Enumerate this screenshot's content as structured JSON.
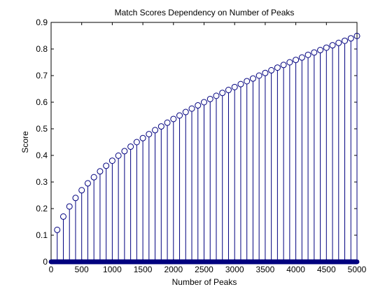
{
  "chart_data": {
    "type": "stem",
    "title": "Match Scores Dependency on Number of Peaks",
    "xlabel": "Number of Peaks",
    "ylabel": "Score",
    "xlim": [
      0,
      5000
    ],
    "ylim": [
      0,
      0.9
    ],
    "xticks": [
      0,
      500,
      1000,
      1500,
      2000,
      2500,
      3000,
      3500,
      4000,
      4500,
      5000
    ],
    "yticks": [
      0,
      0.1,
      0.2,
      0.3,
      0.4,
      0.5,
      0.6,
      0.7,
      0.8,
      0.9
    ],
    "grid": false,
    "legend": "none",
    "color": "#00007f",
    "baseline_x_step": 10,
    "x": [
      100,
      200,
      300,
      400,
      500,
      600,
      700,
      800,
      900,
      1000,
      1100,
      1200,
      1300,
      1400,
      1500,
      1600,
      1700,
      1800,
      1900,
      2000,
      2100,
      2200,
      2300,
      2400,
      2500,
      2600,
      2700,
      2800,
      2900,
      3000,
      3100,
      3200,
      3300,
      3400,
      3500,
      3600,
      3700,
      3800,
      3900,
      4000,
      4100,
      4200,
      4300,
      4400,
      4500,
      4600,
      4700,
      4800,
      4900,
      5000
    ],
    "y": [
      0.12,
      0.17,
      0.208,
      0.24,
      0.269,
      0.295,
      0.318,
      0.34,
      0.361,
      0.38,
      0.399,
      0.416,
      0.433,
      0.45,
      0.465,
      0.48,
      0.495,
      0.509,
      0.523,
      0.537,
      0.55,
      0.563,
      0.576,
      0.588,
      0.6,
      0.612,
      0.624,
      0.635,
      0.646,
      0.657,
      0.668,
      0.679,
      0.689,
      0.7,
      0.71,
      0.72,
      0.73,
      0.74,
      0.75,
      0.759,
      0.768,
      0.778,
      0.787,
      0.796,
      0.805,
      0.814,
      0.823,
      0.831,
      0.84,
      0.849
    ]
  }
}
